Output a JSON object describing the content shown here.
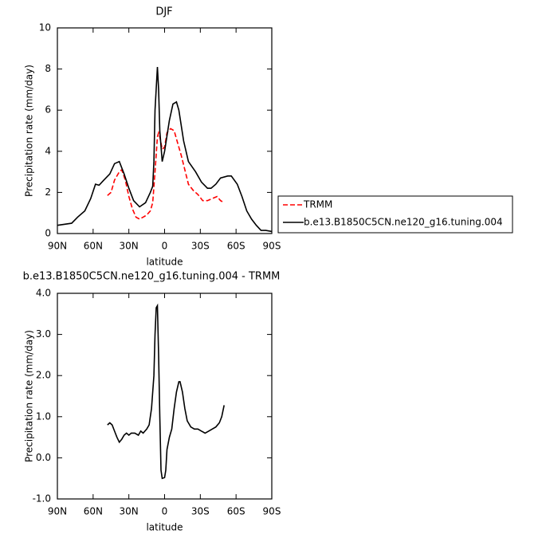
{
  "chart_data": [
    {
      "type": "line",
      "title": "DJF",
      "xlabel": "latitude",
      "ylabel": "Precipitation rate (mm/day)",
      "xlim": [
        90,
        -90
      ],
      "xticks": [
        {
          "value": 90,
          "label": "90N"
        },
        {
          "value": 60,
          "label": "60N"
        },
        {
          "value": 30,
          "label": "30N"
        },
        0,
        {
          "value": -30,
          "label": "30S"
        },
        {
          "value": -60,
          "label": "60S"
        },
        {
          "value": -90,
          "label": "90S"
        }
      ],
      "ylim": [
        0,
        10
      ],
      "yticks": [
        0,
        2,
        4,
        6,
        8,
        10
      ],
      "series": [
        {
          "name": "TRMM",
          "color": "#ff0000",
          "dashed": true,
          "x": [
            48,
            45,
            42,
            38,
            36,
            33,
            30,
            27,
            24,
            21,
            18,
            15,
            12,
            10,
            8,
            6,
            5,
            4,
            2,
            0,
            -2,
            -5,
            -8,
            -11,
            -14,
            -17,
            -20,
            -24,
            -28,
            -32,
            -36,
            -40,
            -44,
            -47,
            -50
          ],
          "values": [
            1.85,
            2.0,
            2.6,
            3.0,
            3.1,
            2.6,
            1.8,
            1.2,
            0.8,
            0.7,
            0.8,
            0.9,
            1.1,
            1.5,
            3.0,
            4.7,
            4.9,
            4.7,
            4.1,
            4.2,
            4.9,
            5.1,
            5.0,
            4.4,
            3.8,
            3.1,
            2.4,
            2.1,
            1.9,
            1.6,
            1.6,
            1.7,
            1.8,
            1.6,
            1.5
          ]
        },
        {
          "name": "b.e13.B1850C5CN.ne120_g16.tuning.004",
          "color": "#000000",
          "dashed": false,
          "x": [
            90,
            78,
            73,
            67,
            62,
            58,
            55,
            51,
            46,
            42,
            38,
            34,
            30,
            26,
            21,
            16,
            12,
            10,
            9,
            8,
            6,
            5,
            4,
            2,
            0,
            -4,
            -7,
            -10,
            -12,
            -16,
            -20,
            -26,
            -31,
            -36,
            -39,
            -43,
            -47,
            -53,
            -56,
            -61,
            -65,
            -69,
            -73,
            -77,
            -81,
            -85,
            -90
          ],
          "values": [
            0.4,
            0.5,
            0.8,
            1.1,
            1.7,
            2.4,
            2.35,
            2.6,
            2.9,
            3.4,
            3.5,
            2.9,
            2.2,
            1.6,
            1.3,
            1.5,
            2.0,
            2.3,
            3.5,
            6.0,
            8.1,
            7.0,
            5.0,
            3.5,
            4.0,
            5.5,
            6.3,
            6.4,
            6.0,
            4.5,
            3.5,
            3.0,
            2.5,
            2.2,
            2.2,
            2.4,
            2.7,
            2.8,
            2.8,
            2.4,
            1.8,
            1.1,
            0.7,
            0.4,
            0.15,
            0.15,
            0.1
          ]
        }
      ]
    },
    {
      "type": "line",
      "title": "b.e13.B1850C5CN.ne120_g16.tuning.004 - TRMM",
      "xlabel": "latitude",
      "ylabel": "Precipitation rate (mm/day)",
      "xlim": [
        90,
        -90
      ],
      "xticks": [
        {
          "value": 90,
          "label": "90N"
        },
        {
          "value": 60,
          "label": "60N"
        },
        {
          "value": 30,
          "label": "30N"
        },
        0,
        {
          "value": -30,
          "label": "30S"
        },
        {
          "value": -60,
          "label": "60S"
        },
        {
          "value": -90,
          "label": "90S"
        }
      ],
      "ylim": [
        -1,
        4
      ],
      "yticks": [
        {
          "value": -1,
          "label": "-1.0"
        },
        {
          "value": 0,
          "label": "0.0"
        },
        {
          "value": 1,
          "label": "1.0"
        },
        {
          "value": 2,
          "label": "2.0"
        },
        {
          "value": 3,
          "label": "3.0"
        },
        {
          "value": 4,
          "label": "4.0"
        }
      ],
      "series": [
        {
          "color": "#000000",
          "dashed": false,
          "x": [
            48,
            46,
            44,
            42,
            40,
            38,
            36,
            34,
            32,
            30,
            28,
            25,
            22,
            20,
            18,
            15,
            13,
            11,
            9,
            8,
            7,
            6,
            5,
            4,
            3,
            2,
            0,
            -1,
            -2,
            -4,
            -6,
            -8,
            -10,
            -12,
            -13,
            -15,
            -17,
            -19,
            -22,
            -25,
            -28,
            -31,
            -34,
            -37,
            -40,
            -43,
            -46,
            -48,
            -50
          ],
          "values": [
            0.8,
            0.85,
            0.8,
            0.65,
            0.5,
            0.38,
            0.45,
            0.55,
            0.6,
            0.55,
            0.6,
            0.6,
            0.55,
            0.65,
            0.6,
            0.7,
            0.8,
            1.2,
            2.0,
            3.0,
            3.65,
            3.7,
            2.5,
            1.0,
            -0.3,
            -0.5,
            -0.48,
            -0.3,
            0.2,
            0.5,
            0.7,
            1.2,
            1.6,
            1.85,
            1.85,
            1.6,
            1.2,
            0.9,
            0.75,
            0.7,
            0.7,
            0.65,
            0.6,
            0.65,
            0.7,
            0.75,
            0.85,
            1.0,
            1.28
          ]
        }
      ]
    }
  ]
}
